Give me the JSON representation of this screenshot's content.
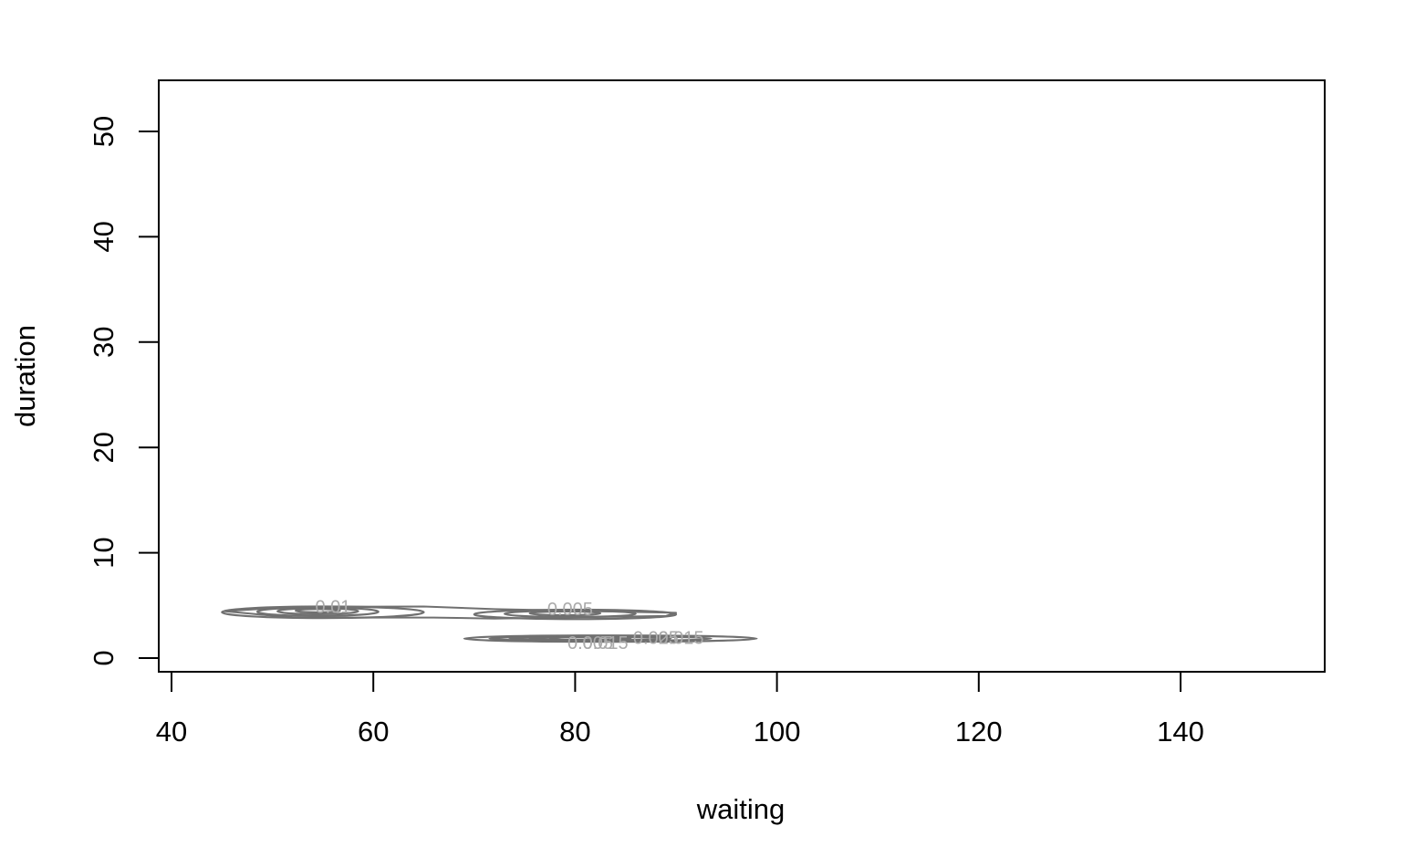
{
  "chart_data": {
    "type": "contour",
    "title": "",
    "xlabel": "waiting",
    "ylabel": "duration",
    "xlim": [
      40,
      150
    ],
    "ylim": [
      0,
      53
    ],
    "x_ticks": [
      40,
      60,
      80,
      100,
      120,
      140
    ],
    "y_ticks": [
      0,
      10,
      20,
      30,
      40,
      50
    ],
    "grid": false,
    "legend": "none",
    "contour_color": "#707070",
    "label_color": "#aaaaaa",
    "contours": [
      {
        "level": "0.005",
        "cx": 55,
        "cy": 4.35,
        "rx": 10.0,
        "ry": 0.55
      },
      {
        "level": "0.01",
        "cx": 54.5,
        "cy": 4.4,
        "rx": 6.0,
        "ry": 0.4
      },
      {
        "level": "0.015",
        "cx": 54.5,
        "cy": 4.45,
        "rx": 4.0,
        "ry": 0.28
      },
      {
        "level": "0.02",
        "cx": 54.5,
        "cy": 4.5,
        "rx": 2.2,
        "ry": 0.16
      },
      {
        "level": "0.005",
        "cx": 80,
        "cy": 4.15,
        "rx": 10.0,
        "ry": 0.45
      },
      {
        "level": "0.01",
        "cx": 79.5,
        "cy": 4.2,
        "rx": 6.5,
        "ry": 0.3
      },
      {
        "level": "0.015",
        "cx": 79.0,
        "cy": 4.25,
        "rx": 3.5,
        "ry": 0.18
      },
      {
        "level": "0.005",
        "cx": 83.5,
        "cy": 1.85,
        "rx": 14.5,
        "ry": 0.3
      },
      {
        "level": "0.01",
        "cx": 82.5,
        "cy": 1.85,
        "rx": 11.0,
        "ry": 0.22
      },
      {
        "level": "0.015",
        "cx": 81.5,
        "cy": 1.85,
        "rx": 8.0,
        "ry": 0.15
      },
      {
        "level": "0.02",
        "cx": 80.5,
        "cy": 1.85,
        "rx": 5.0,
        "ry": 0.1
      },
      {
        "level": "0.025",
        "cx": 80.0,
        "cy": 1.85,
        "rx": 2.5,
        "ry": 0.06
      }
    ],
    "bridge": [
      [
        45.2,
        4.45
      ],
      [
        52,
        4.85
      ],
      [
        65,
        4.9
      ],
      [
        72,
        4.65
      ],
      [
        90,
        4.3
      ],
      [
        89,
        4.0
      ],
      [
        72,
        3.75
      ],
      [
        66,
        3.85
      ],
      [
        52,
        3.85
      ],
      [
        45.2,
        4.45
      ]
    ],
    "labels": [
      {
        "text": "0.01",
        "x": 56,
        "y": 4.8
      },
      {
        "text": "0.005",
        "x": 79.5,
        "y": 4.6
      },
      {
        "text": "0.015",
        "x": 90.5,
        "y": 1.85
      },
      {
        "text": "0.025",
        "x": 88,
        "y": 1.85
      },
      {
        "text": "0.005",
        "x": 81.5,
        "y": 1.4
      },
      {
        "text": "0.015",
        "x": 83,
        "y": 1.4
      }
    ]
  }
}
